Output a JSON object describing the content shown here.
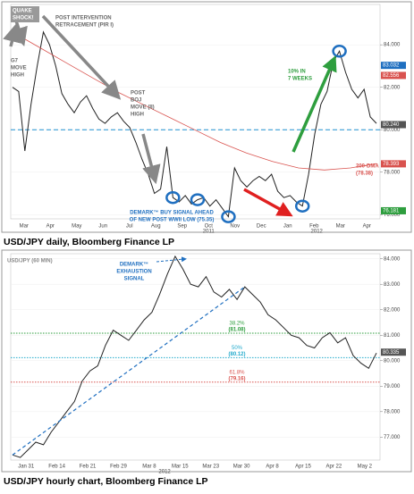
{
  "chart_data": [
    {
      "type": "line",
      "caption": "USD/JPY daily, Bloomberg Finance LP",
      "xtick_labels": [
        "Mar",
        "Apr",
        "May",
        "Jun",
        "Jul",
        "Aug",
        "Sep",
        "Oct",
        "Nov",
        "Dec",
        "Jan",
        "Feb",
        "Mar",
        "Apr"
      ],
      "year_labels": [
        "2011",
        "2012"
      ],
      "series": [
        {
          "name": "USD/JPY",
          "color": "#222222",
          "values": [
            82.0,
            81.8,
            79.0,
            81.2,
            83.0,
            84.6,
            84.0,
            83.0,
            81.7,
            81.2,
            80.8,
            81.3,
            81.6,
            81.0,
            80.5,
            80.3,
            80.6,
            80.8,
            80.4,
            80.1,
            79.4,
            78.6,
            77.9,
            77.0,
            77.2,
            79.2,
            76.8,
            76.6,
            76.9,
            76.5,
            76.7,
            76.8,
            76.4,
            76.7,
            76.3,
            75.9,
            78.2,
            77.6,
            77.3,
            77.6,
            77.8,
            77.6,
            77.9,
            77.1,
            76.8,
            76.9,
            76.6,
            76.4,
            77.9,
            79.8,
            81.2,
            81.8,
            83.2,
            83.7,
            82.7,
            81.9,
            81.5,
            81.9,
            80.6,
            80.3
          ]
        },
        {
          "name": "200-DMA",
          "color": "#d9534f",
          "values": [
            84.6,
            83.9,
            83.2,
            82.5,
            81.8,
            81.2,
            80.6,
            80.0,
            79.4,
            78.9,
            78.5,
            78.2,
            78.1,
            78.2,
            78.4
          ]
        }
      ],
      "ylim": [
        75.8,
        85.9
      ],
      "yticks": [
        {
          "value": 76,
          "label": "76.000"
        },
        {
          "value": 78,
          "label": "78.000"
        },
        {
          "value": 80,
          "label": "80.000"
        },
        {
          "value": 82,
          "label": "82.000"
        },
        {
          "value": 84,
          "label": "84.000"
        }
      ],
      "price_labels": [
        {
          "value": 83.032,
          "color": "#1f6fc0"
        },
        {
          "value": 82.556,
          "color": "#d9534f"
        },
        {
          "value": 80.24,
          "label": "80.240",
          "color": "#555555"
        },
        {
          "value": 78.393,
          "color": "#d9534f"
        },
        {
          "value": 76.181,
          "color": "#2e9e3e"
        }
      ],
      "levels": [
        {
          "value": 80,
          "color": "#1f8fd0"
        }
      ],
      "annotations": [
        [
          "QUAKE",
          "SHOCK!"
        ],
        [
          "POST INTERVENTION",
          "RETRACEMENT (PIR I)"
        ],
        [
          "G7",
          "MOVE",
          "HIGH"
        ],
        [
          "POST",
          "BOJ",
          "MOVE (II)",
          "HIGH"
        ],
        [
          "DEMARK™ BUY SIGNAL AHEAD",
          "OF NEW POST WWII LOW (75.35)"
        ],
        [
          "10% IN",
          "7 WEEKS"
        ],
        [
          "200-DMA",
          "(78.38)"
        ]
      ]
    },
    {
      "type": "line",
      "title": "USD/JPY (60 MIN)",
      "caption": "USD/JPY hourly chart, Bloomberg Finance LP",
      "xtick_labels": [
        "Jan 31",
        "Feb 14",
        "Feb 21",
        "Feb 29",
        "Mar 8",
        "Mar 15",
        "Mar 23",
        "Mar 30",
        "Apr 8",
        "Apr 15",
        "Apr 22",
        "May 2"
      ],
      "year_labels": [
        "2012"
      ],
      "series": [
        {
          "name": "USD/JPY",
          "color": "#222222",
          "values": [
            76.3,
            76.2,
            76.5,
            76.8,
            76.7,
            77.2,
            77.6,
            78.0,
            78.4,
            79.2,
            79.6,
            79.8,
            80.6,
            81.2,
            81.0,
            80.8,
            81.2,
            81.6,
            81.9,
            82.6,
            83.4,
            84.1,
            83.6,
            83.0,
            82.9,
            83.3,
            82.7,
            82.5,
            82.8,
            82.4,
            82.9,
            82.6,
            82.3,
            81.8,
            81.6,
            81.3,
            81.0,
            80.9,
            80.6,
            80.5,
            80.9,
            81.1,
            80.7,
            80.9,
            80.2,
            79.9,
            79.7,
            80.3
          ]
        }
      ],
      "ylim": [
        76.1,
        84.2
      ],
      "yticks": [
        {
          "value": 77,
          "label": "77.000"
        },
        {
          "value": 78,
          "label": "78.000"
        },
        {
          "value": 79,
          "label": "79.000"
        },
        {
          "value": 80,
          "label": "80.000"
        },
        {
          "value": 81,
          "label": "81.000"
        },
        {
          "value": 82,
          "label": "82.000"
        },
        {
          "value": 83,
          "label": "83.000"
        },
        {
          "value": 84,
          "label": "84.000"
        }
      ],
      "price_labels": [
        {
          "value": 80.335,
          "color": "#555555"
        }
      ],
      "levels": [
        {
          "label": "38.2%",
          "value": 81.08,
          "value_label": "(81.08)",
          "color": "#2e9e3e"
        },
        {
          "label": "50%",
          "value": 80.12,
          "value_label": "(80.12)",
          "color": "#22aacc"
        },
        {
          "label": "61.8%",
          "value": 79.16,
          "value_label": "(79.16)",
          "color": "#d9534f"
        }
      ],
      "annotations": [
        [
          "DEMARK™",
          "EXHAUSTION",
          "SIGNAL"
        ]
      ]
    }
  ]
}
